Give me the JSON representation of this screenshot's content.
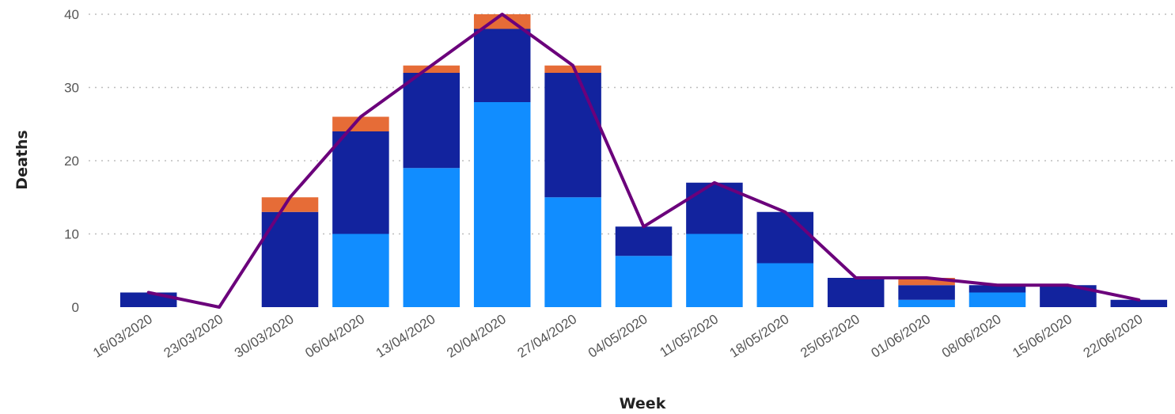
{
  "chart_data": {
    "type": "bar",
    "stacked": true,
    "title": "",
    "xlabel": "Week",
    "ylabel": "Deaths",
    "ylim": [
      0,
      40
    ],
    "yticks": [
      0,
      10,
      20,
      30,
      40
    ],
    "grid": true,
    "categories": [
      "16/03/2020",
      "23/03/2020",
      "30/03/2020",
      "06/04/2020",
      "13/04/2020",
      "20/04/2020",
      "27/04/2020",
      "04/05/2020",
      "11/05/2020",
      "18/05/2020",
      "25/05/2020",
      "01/06/2020",
      "08/06/2020",
      "15/06/2020",
      "22/06/2020"
    ],
    "series": [
      {
        "color": "#118dff",
        "values": [
          0,
          0,
          0,
          10,
          19,
          28,
          15,
          7,
          10,
          6,
          0,
          1,
          2,
          0,
          0
        ]
      },
      {
        "color": "#12239e",
        "values": [
          2,
          0,
          13,
          14,
          13,
          10,
          17,
          4,
          7,
          7,
          4,
          2,
          1,
          3,
          1
        ]
      },
      {
        "color": "#e66c37",
        "values": [
          0,
          0,
          2,
          2,
          1,
          2,
          1,
          0,
          0,
          0,
          0,
          1,
          0,
          0,
          0
        ]
      }
    ],
    "line": {
      "color": "#6b007b",
      "values": [
        2,
        0,
        15,
        26,
        33,
        40,
        33,
        11,
        17,
        13,
        4,
        4,
        3,
        3,
        1
      ]
    }
  }
}
